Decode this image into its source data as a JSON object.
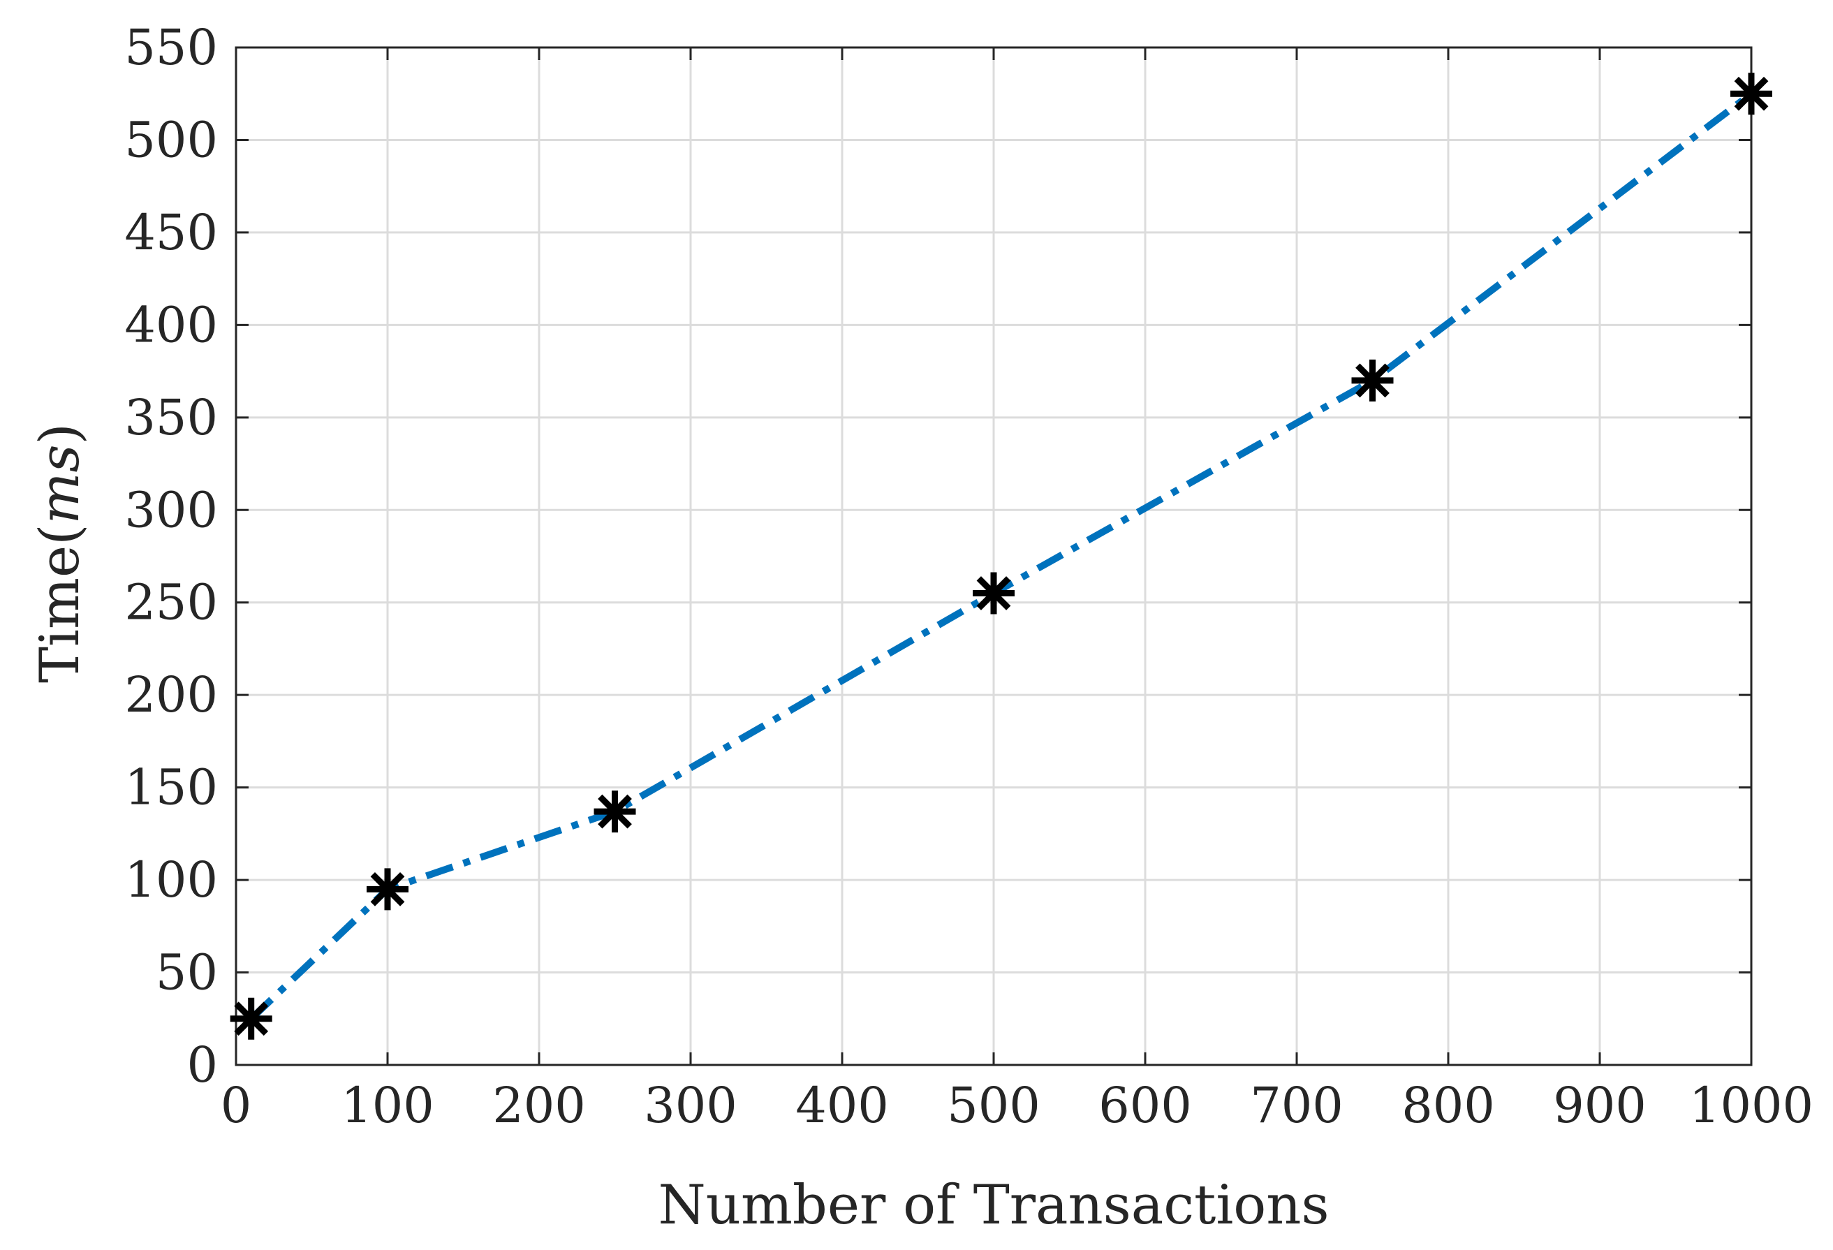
{
  "chart_data": {
    "type": "line",
    "xlabel": "Number of Transactions",
    "ylabel_text": "Time(",
    "ylabel_unit": "ms",
    "ylabel_close": ")",
    "xlim": [
      0,
      1000
    ],
    "ylim": [
      0,
      550
    ],
    "xticks": [
      0,
      100,
      200,
      300,
      400,
      500,
      600,
      700,
      800,
      900,
      1000
    ],
    "yticks": [
      0,
      50,
      100,
      150,
      200,
      250,
      300,
      350,
      400,
      450,
      500,
      550
    ],
    "grid": true,
    "series": [
      {
        "color": "#0072BD",
        "line_style": "dash-dot",
        "marker": "asterisk",
        "marker_color": "#000000",
        "x": [
          10,
          100,
          250,
          500,
          750,
          1000
        ],
        "y": [
          25,
          95,
          137,
          255,
          370,
          525
        ]
      }
    ]
  }
}
